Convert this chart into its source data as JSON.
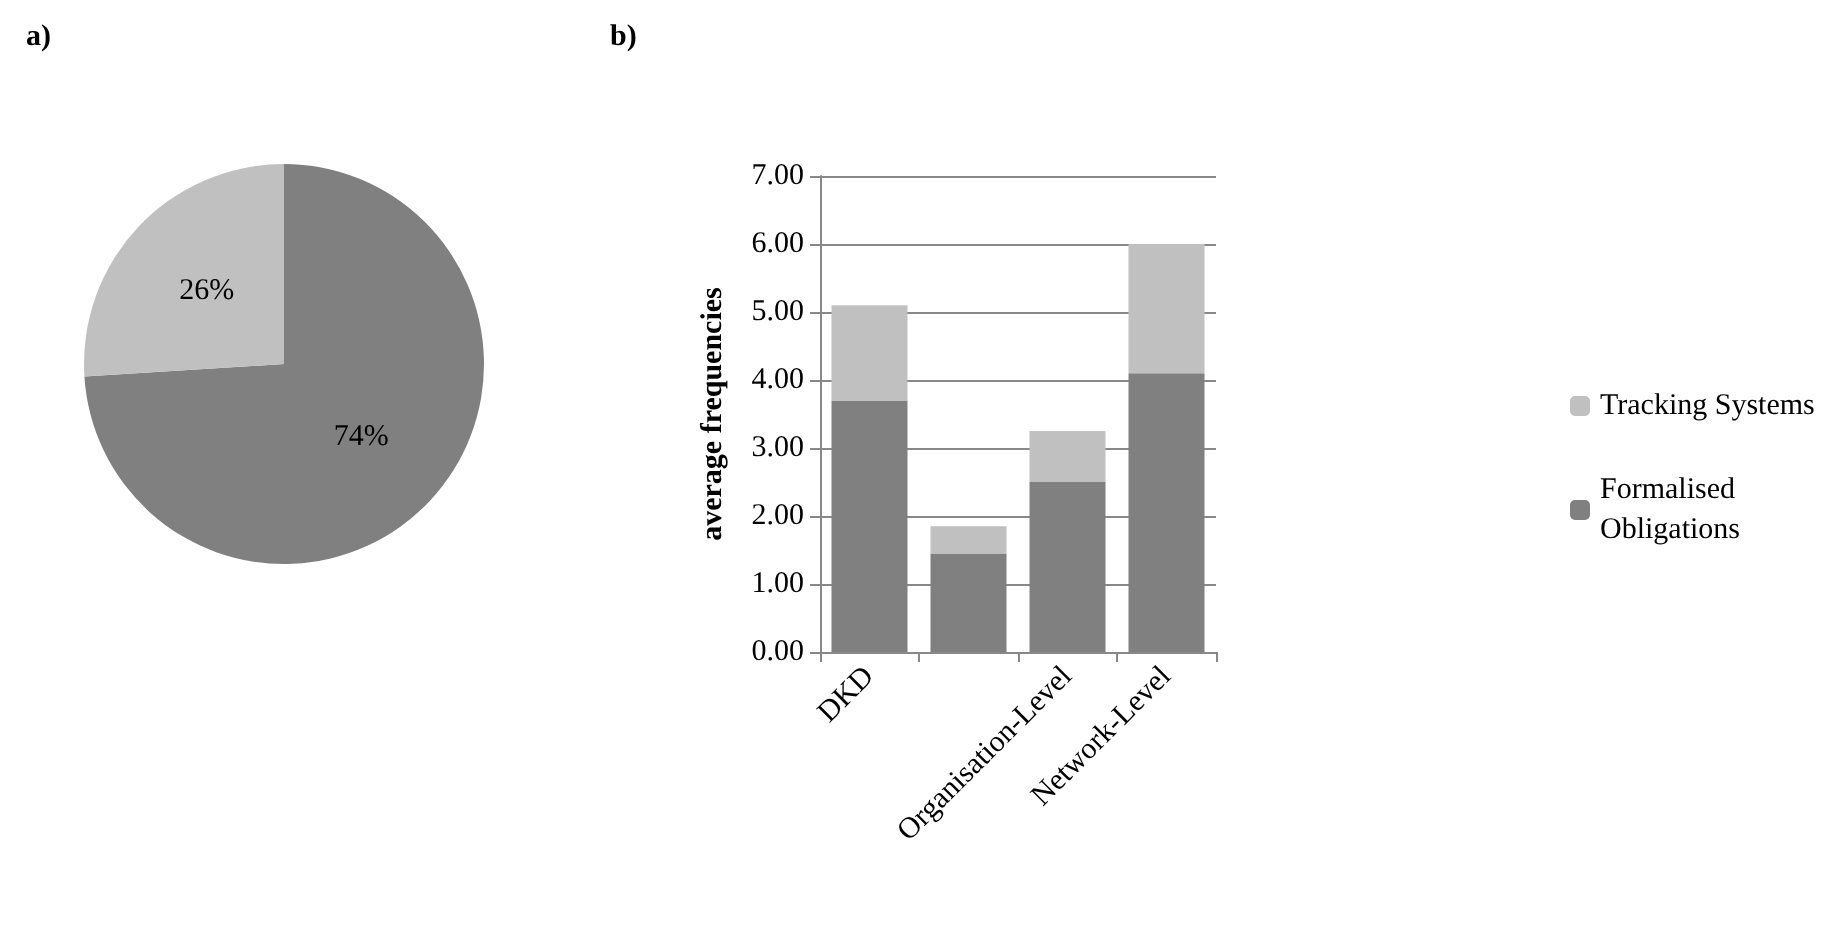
{
  "chart_data": [
    {
      "type": "pie",
      "title": "a)",
      "categories": [
        null,
        null
      ],
      "values": [
        74,
        26
      ],
      "colors": [
        "#808080",
        "#c0c0c0"
      ],
      "value_labels": [
        "74%",
        "26%"
      ],
      "legend": false
    },
    {
      "type": "bar",
      "title": "b)",
      "ylabel": "average frequencies",
      "categories": [
        "DKD",
        null,
        "Organisation-Level",
        "Network-Level"
      ],
      "stacked": true,
      "series": [
        {
          "name": "Formalised Obligations",
          "color": "#808080",
          "values": [
            3.7,
            1.45,
            2.5,
            4.1
          ]
        },
        {
          "name": "Tracking Systems",
          "color": "#c0c0c0",
          "values": [
            1.4,
            0.4,
            0.75,
            1.9
          ]
        }
      ],
      "ylim": [
        0,
        7
      ],
      "yticks": [
        {
          "value": 0,
          "label": "0.00"
        },
        {
          "value": 1,
          "label": "1.00"
        },
        {
          "value": 2,
          "label": "2.00"
        },
        {
          "value": 3,
          "label": "3.00"
        },
        {
          "value": 4,
          "label": "4.00"
        },
        {
          "value": 5,
          "label": "5.00"
        },
        {
          "value": 6,
          "label": "6.00"
        },
        {
          "value": 7,
          "label": "7.00"
        }
      ],
      "grid": "y",
      "legend": "right"
    }
  ]
}
